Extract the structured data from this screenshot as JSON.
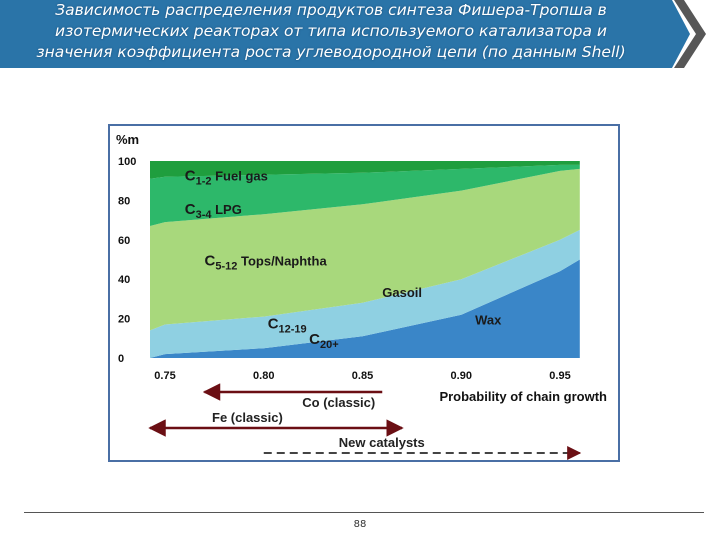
{
  "header": {
    "title_lines": [
      "Зависимость распределения продуктов синтеза Фишера-Тропша в",
      "изотермических реакторах от типа используемого катализатора и",
      "значения коэффициента роста углеводородной цепи (по данным Shell)"
    ]
  },
  "colors": {
    "banner": "#2a74a8",
    "band_c1_2": "#1f9e3e",
    "band_c3_4": "#2db86a",
    "band_c5_12": "#a8d87c",
    "band_c12_19": "#8fd0e2",
    "band_c20": "#3a86c8",
    "arrow": "#6b0f14"
  },
  "chart_data": {
    "type": "area",
    "stacked": true,
    "ylabel": "%m",
    "xlabel": "Probability of chain growth",
    "x_ticks": [
      "0.75",
      "0.80",
      "0.85",
      "0.90",
      "0.95"
    ],
    "y_ticks": [
      "100",
      "80",
      "60",
      "40",
      "20",
      "0"
    ],
    "xlim": [
      0.75,
      0.95
    ],
    "ylim": [
      0,
      100
    ],
    "x": [
      0.7,
      0.75,
      0.8,
      0.85,
      0.9,
      0.95,
      0.96
    ],
    "series": [
      {
        "name": "C 20+",
        "values": [
          0,
          2,
          5,
          11,
          22,
          44,
          50
        ]
      },
      {
        "name": "C12-19",
        "values": [
          14,
          15,
          16,
          17,
          18,
          16,
          15
        ]
      },
      {
        "name": "C5-12",
        "values": [
          53,
          52,
          52,
          50,
          45,
          35,
          31
        ]
      },
      {
        "name": "C3-4",
        "values": [
          24,
          23,
          20,
          16,
          11,
          3,
          2
        ]
      },
      {
        "name": "C1-2",
        "values": [
          9,
          8,
          7,
          6,
          4,
          2,
          2
        ]
      }
    ],
    "annotations": [
      {
        "sub": "1-2",
        "text": "Fuel gas",
        "x": 0.76,
        "y": 90
      },
      {
        "sub": "3-4",
        "text": "LPG",
        "x": 0.76,
        "y": 73
      },
      {
        "sub": "5-12",
        "text": "Tops/Naphtha",
        "x": 0.77,
        "y": 47
      },
      {
        "sub": "12-19",
        "text": "",
        "x": 0.802,
        "y": 15
      },
      {
        "text": "Gasoil",
        "x": 0.86,
        "y": 31
      },
      {
        "text": "Wax",
        "x": 0.907,
        "y": 17
      },
      {
        "sub": "20+",
        "text": "",
        "x": 0.823,
        "y": 7
      }
    ],
    "catalysts": [
      {
        "name": "Co (classic)",
        "from": 0.77,
        "to": 0.86,
        "style": "arrow-left"
      },
      {
        "name": "Fe (classic)",
        "from": 0.7,
        "to": 0.87,
        "style": "double-arrow"
      },
      {
        "name": "New catalysts",
        "from": 0.8,
        "to": 0.96,
        "style": "dashed-arrow-right"
      }
    ]
  },
  "footer": {
    "page_number": "88"
  }
}
